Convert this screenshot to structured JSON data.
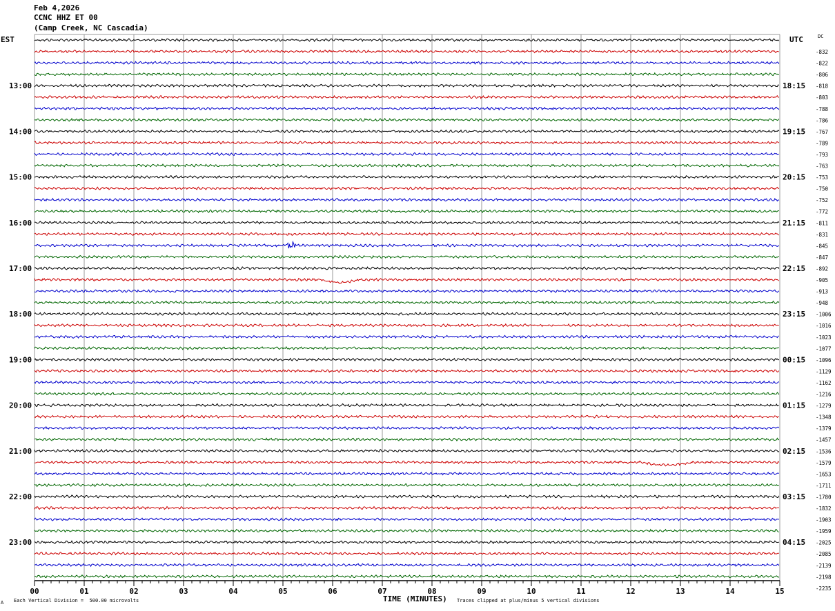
{
  "header": {
    "date": "Feb 4,2026",
    "station": "CCNC HHZ ET 00",
    "location": "(Camp Creek, NC Cascadia)"
  },
  "labels": {
    "left_timezone": "EST",
    "right_timezone": "UTC",
    "dc_label": "DC"
  },
  "footer": {
    "corner": "A",
    "scale_note": "Each Vertical Division =  500.00 microvolts",
    "x_label": "TIME (MINUTES)",
    "clip_note": "Traces clipped at plus/minus 5 vertical divisions"
  },
  "colors": {
    "trace_cycle": [
      "#000000",
      "#cc0000",
      "#0000cc",
      "#006600"
    ],
    "grid": "#999999",
    "background": "#ffffff"
  },
  "chart_data": {
    "type": "line",
    "subtype": "helicorder",
    "minutes_per_line": 15,
    "x_ticks": [
      "00",
      "01",
      "02",
      "03",
      "04",
      "05",
      "06",
      "07",
      "08",
      "09",
      "10",
      "11",
      "12",
      "13",
      "14",
      "15"
    ],
    "xlim": [
      0,
      15
    ],
    "left_hour_labels": [
      "13:00",
      "14:00",
      "15:00",
      "16:00",
      "17:00",
      "18:00",
      "19:00",
      "20:00",
      "21:00",
      "22:00",
      "23:00"
    ],
    "right_hour_labels": [
      "18:15",
      "19:15",
      "20:15",
      "21:15",
      "22:15",
      "23:15",
      "00:15",
      "01:15",
      "02:15",
      "03:15",
      "04:15"
    ],
    "dc_offsets": [
      -832,
      -822,
      -806,
      -818,
      -803,
      -788,
      -786,
      -767,
      -789,
      -793,
      -763,
      -753,
      -750,
      -752,
      -772,
      -811,
      -831,
      -845,
      -847,
      -892,
      -905,
      -913,
      -948,
      -1006,
      -1016,
      -1023,
      -1077,
      -1096,
      -1129,
      -1162,
      -1216,
      -1279,
      -1348,
      -1379,
      -1457,
      -1536,
      -1579,
      -1653,
      -1711,
      -1780,
      -1832,
      -1903,
      -1959,
      -2025,
      -2085,
      -2139,
      -2198,
      -2235
    ],
    "events": [
      {
        "trace": 18,
        "start_min": 5.05,
        "end_min": 5.25,
        "shape": "burst"
      },
      {
        "trace": 21,
        "start_min": 5.75,
        "end_min": 7.0,
        "shape": "dip"
      },
      {
        "trace": 37,
        "start_min": 12.2,
        "end_min": 13.9,
        "shape": "dip"
      }
    ]
  }
}
